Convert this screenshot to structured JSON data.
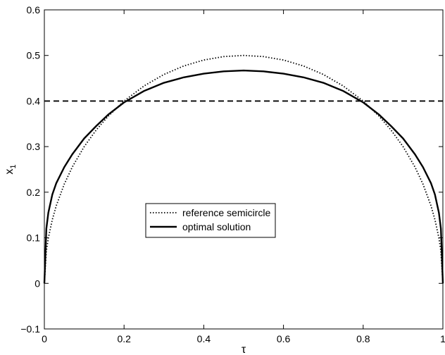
{
  "chart_data": {
    "type": "line",
    "title": "",
    "xlabel": "τ",
    "ylabel": "x",
    "ylabel_subscript": "1",
    "xlim": [
      0,
      1
    ],
    "ylim": [
      -0.1,
      0.6
    ],
    "xticks": [
      0,
      0.2,
      0.4,
      0.6,
      0.8,
      1
    ],
    "xtick_labels": [
      "0",
      "0.2",
      "0.4",
      "0.6",
      "0.8",
      "1"
    ],
    "yticks": [
      -0.1,
      0,
      0.1,
      0.2,
      0.3,
      0.4,
      0.5,
      0.6
    ],
    "ytick_labels": [
      "−0.1",
      "0",
      "0.1",
      "0.2",
      "0.3",
      "0.4",
      "0.5",
      "0.6"
    ],
    "grid": false,
    "legend_position": "center",
    "series": [
      {
        "name": "reference semicircle",
        "style": "dotted",
        "color": "#000000",
        "x": [
          0,
          0.005,
          0.01,
          0.02,
          0.03,
          0.05,
          0.07,
          0.1,
          0.13,
          0.16,
          0.2,
          0.25,
          0.3,
          0.35,
          0.4,
          0.45,
          0.5,
          0.55,
          0.6,
          0.65,
          0.7,
          0.75,
          0.8,
          0.84,
          0.87,
          0.9,
          0.93,
          0.95,
          0.97,
          0.98,
          0.99,
          0.995,
          1
        ],
        "y": [
          0,
          0.0705,
          0.0995,
          0.14,
          0.1706,
          0.2179,
          0.2551,
          0.3,
          0.3363,
          0.3666,
          0.4,
          0.433,
          0.4583,
          0.477,
          0.4899,
          0.4975,
          0.5,
          0.4975,
          0.4899,
          0.477,
          0.4583,
          0.433,
          0.4,
          0.3666,
          0.3363,
          0.3,
          0.2551,
          0.2179,
          0.1706,
          0.14,
          0.0995,
          0.0705,
          0
        ]
      },
      {
        "name": "optimal solution",
        "style": "solid",
        "color": "#000000",
        "x": [
          0,
          0.005,
          0.01,
          0.02,
          0.03,
          0.05,
          0.07,
          0.1,
          0.13,
          0.16,
          0.2,
          0.25,
          0.3,
          0.35,
          0.4,
          0.45,
          0.5,
          0.55,
          0.6,
          0.65,
          0.7,
          0.75,
          0.8,
          0.84,
          0.87,
          0.9,
          0.93,
          0.95,
          0.97,
          0.98,
          0.99,
          0.995,
          1
        ],
        "y": [
          0,
          0.12,
          0.155,
          0.195,
          0.22,
          0.255,
          0.283,
          0.318,
          0.345,
          0.37,
          0.397,
          0.422,
          0.44,
          0.452,
          0.46,
          0.465,
          0.467,
          0.465,
          0.46,
          0.452,
          0.44,
          0.422,
          0.397,
          0.37,
          0.345,
          0.318,
          0.283,
          0.255,
          0.22,
          0.195,
          0.155,
          0.12,
          0
        ]
      },
      {
        "name": "",
        "style": "dashed",
        "color": "#000000",
        "x": [
          0,
          1
        ],
        "y": [
          0.4,
          0.4
        ]
      }
    ],
    "legend_entries": [
      {
        "label": "reference semicircle",
        "style": "dotted"
      },
      {
        "label": "optimal solution",
        "style": "solid"
      }
    ]
  }
}
